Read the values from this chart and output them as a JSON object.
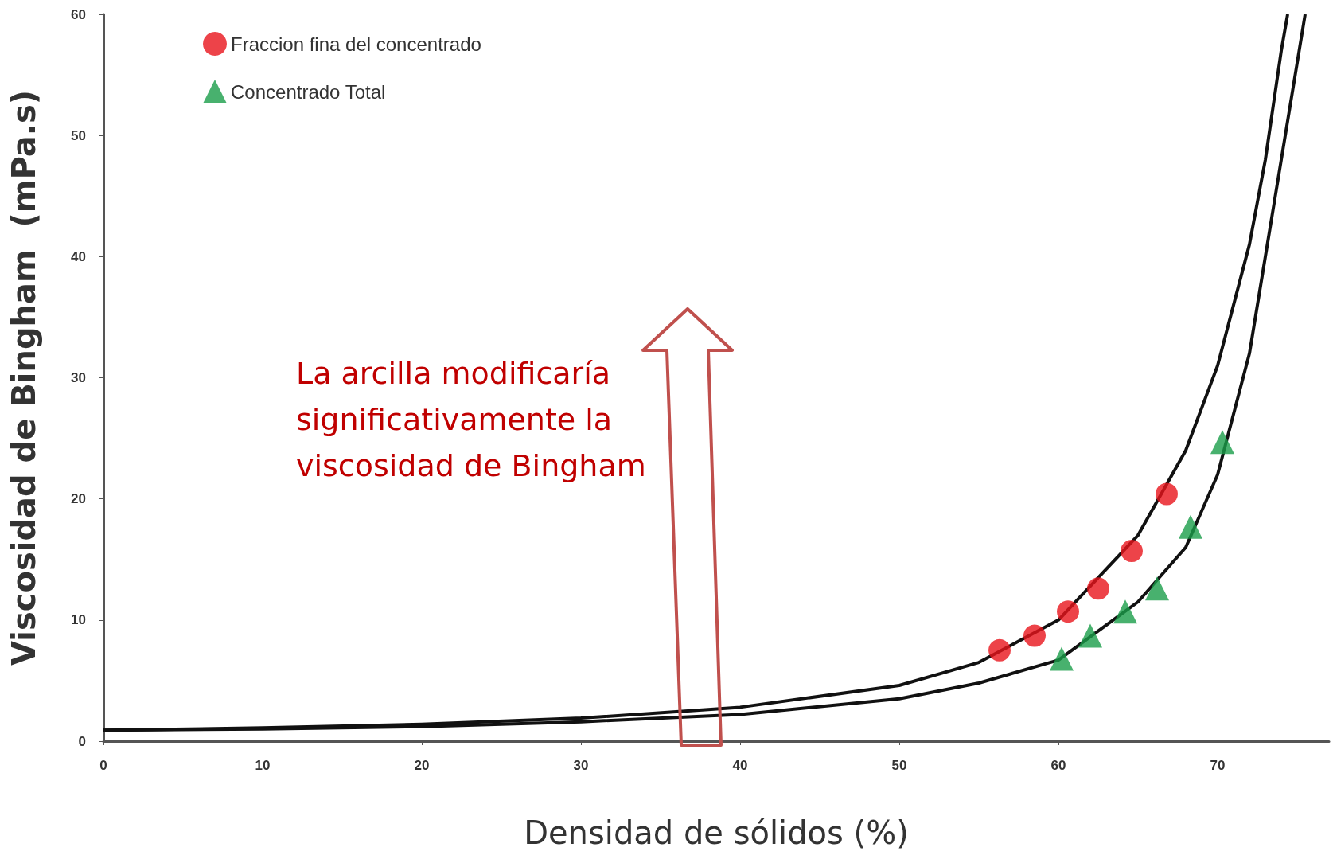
{
  "chart_data": {
    "type": "scatter",
    "xlabel": "Densidad de sólidos (%)",
    "ylabel": "Viscosidad de Bingham  (mPa.s)",
    "xlim": [
      0,
      77
    ],
    "xticks": [
      0,
      10,
      20,
      30,
      40,
      50,
      60,
      70
    ],
    "ylim": [
      0,
      60
    ],
    "yticks": [
      0,
      10,
      20,
      30,
      40,
      50,
      60
    ],
    "grid": false,
    "legend": "top left",
    "annotations": [
      "La arcilla modificaría significativamente la viscosidad de Bingham"
    ],
    "series": [
      {
        "name": "Fraccion fina del concentrado",
        "type": "scatter",
        "marker": "circle",
        "color": "#e8141b",
        "x": [
          56.3,
          58.5,
          60.6,
          62.5,
          64.6,
          66.8
        ],
        "values": [
          7.5,
          8.7,
          10.7,
          12.6,
          15.7,
          20.4
        ]
      },
      {
        "name": "Concentrado Total",
        "type": "scatter",
        "marker": "triangle",
        "color": "#1a9e4a",
        "x": [
          60.2,
          62.0,
          64.2,
          66.2,
          68.3,
          70.3
        ],
        "values": [
          6.8,
          8.7,
          10.7,
          12.6,
          17.7,
          24.7
        ]
      },
      {
        "type": "line",
        "marker": "none",
        "line_style": "solid",
        "color": "#111111",
        "x": [
          0,
          10,
          20,
          30,
          40,
          50,
          55,
          60,
          65,
          68,
          70,
          72,
          73,
          74,
          74.4
        ],
        "values": [
          0.9,
          1.1,
          1.4,
          1.9,
          2.8,
          4.6,
          6.5,
          10,
          17,
          24,
          31,
          41,
          48,
          57,
          60
        ]
      },
      {
        "type": "line",
        "marker": "none",
        "line_style": "solid",
        "color": "#111111",
        "x": [
          0,
          10,
          20,
          30,
          40,
          50,
          55,
          60,
          65,
          68,
          70,
          72,
          73,
          74.5,
          75.5
        ],
        "values": [
          0.9,
          1.0,
          1.2,
          1.6,
          2.2,
          3.5,
          4.8,
          6.7,
          11.5,
          16,
          22,
          32,
          40,
          52,
          60
        ]
      }
    ]
  }
}
